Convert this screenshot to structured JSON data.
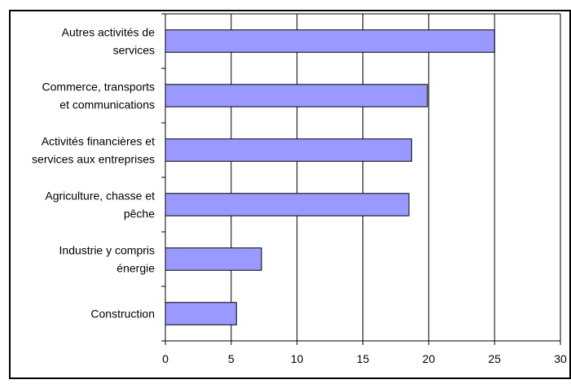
{
  "chart_data": {
    "type": "bar",
    "orientation": "horizontal",
    "title": "",
    "xlabel": "",
    "ylabel": "",
    "xlim": [
      0,
      30
    ],
    "xticks": [
      "0",
      "5",
      "10",
      "15",
      "20",
      "25",
      "30"
    ],
    "grid": "vertical",
    "legend": "none",
    "categories": [
      [
        "Autres activités de",
        "services"
      ],
      [
        "Commerce, transports",
        "et communications"
      ],
      [
        "Activités financières et",
        "services aux entreprises"
      ],
      [
        "Agriculture, chasse et",
        "pêche"
      ],
      [
        "Industrie y compris",
        "énergie"
      ],
      [
        "Construction"
      ]
    ],
    "values": [
      25.0,
      19.9,
      18.7,
      18.5,
      7.3,
      5.4
    ],
    "colors": {
      "bar_fill": "#9999ff",
      "bar_stroke": "#000000",
      "grid": "#000000",
      "border": "#000000"
    }
  }
}
